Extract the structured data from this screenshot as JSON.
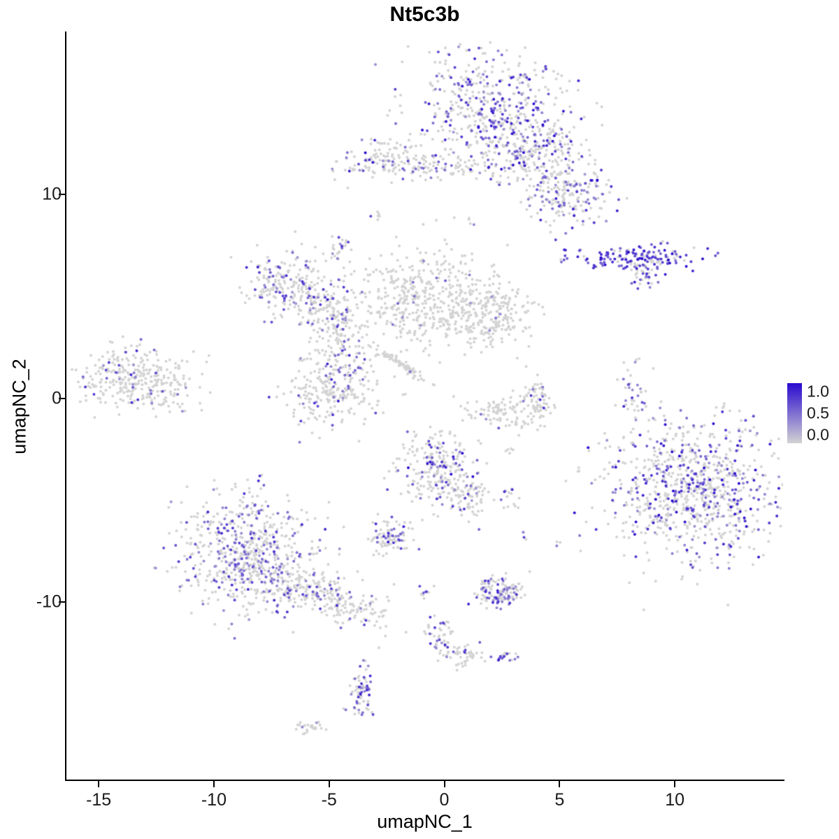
{
  "chart_data": {
    "type": "scatter",
    "title": "Nt5c3b",
    "xlabel": "umapNC_1",
    "ylabel": "umapNC_2",
    "xlim": [
      -16.4,
      14.7
    ],
    "ylim": [
      -18.7,
      18.0
    ],
    "x_ticks": [
      -15,
      -10,
      -5,
      0,
      5,
      10
    ],
    "y_ticks": [
      10,
      0,
      -10
    ],
    "grid": false,
    "legend_position": "right",
    "point_color_low": "#D3D3D3",
    "point_color_high": "#2A0ACF",
    "legend": {
      "tick_labels": [
        "1.0",
        "0.5",
        "0.0"
      ]
    },
    "clusters": [
      {
        "name": "top-main",
        "cx": 2.0,
        "cy": 14.3,
        "sx": 1.6,
        "sy": 1.4,
        "rot": 0,
        "n": 480,
        "frac": 0.35,
        "vmin": 0.3,
        "vmax": 1.0
      },
      {
        "name": "top-right-arm",
        "cx": 4.0,
        "cy": 11.8,
        "sx": 1.4,
        "sy": 0.9,
        "rot": -0.3,
        "n": 280,
        "frac": 0.3,
        "vmin": 0.3,
        "vmax": 1.0
      },
      {
        "name": "top-right-lobe",
        "cx": 5.4,
        "cy": 9.9,
        "sx": 0.9,
        "sy": 0.7,
        "rot": 0,
        "n": 150,
        "frac": 0.3,
        "vmin": 0.3,
        "vmax": 0.9
      },
      {
        "name": "top-left-small",
        "cx": -2.4,
        "cy": 11.7,
        "sx": 1.1,
        "sy": 0.55,
        "rot": 0,
        "n": 140,
        "frac": 0.22,
        "vmin": 0.3,
        "vmax": 1.0
      },
      {
        "name": "top-mid-strand",
        "cx": 0.1,
        "cy": 11.3,
        "sx": 0.8,
        "sy": 0.25,
        "rot": 0,
        "n": 50,
        "frac": 0.1,
        "vmin": 0.3,
        "vmax": 0.7
      },
      {
        "name": "tiny-upper-mid",
        "cx": -4.5,
        "cy": 7.4,
        "sx": 0.25,
        "sy": 0.35,
        "rot": 0,
        "n": 25,
        "frac": 0.3,
        "vmin": 0.3,
        "vmax": 0.8
      },
      {
        "name": "right-band-high",
        "cx": 8.4,
        "cy": 6.9,
        "sx": 1.5,
        "sy": 0.28,
        "rot": 0,
        "n": 150,
        "frac": 0.75,
        "vmin": 0.5,
        "vmax": 1.0
      },
      {
        "name": "right-band-tail",
        "cx": 8.8,
        "cy": 6.1,
        "sx": 0.35,
        "sy": 0.45,
        "rot": 0,
        "n": 40,
        "frac": 0.5,
        "vmin": 0.4,
        "vmax": 1.0
      },
      {
        "name": "mid-left-blob",
        "cx": -6.8,
        "cy": 5.7,
        "sx": 1.0,
        "sy": 0.75,
        "rot": 0,
        "n": 170,
        "frac": 0.25,
        "vmin": 0.3,
        "vmax": 0.9
      },
      {
        "name": "mid-left-arm1",
        "cx": -5.3,
        "cy": 4.5,
        "sx": 0.8,
        "sy": 0.8,
        "rot": 0,
        "n": 140,
        "frac": 0.2,
        "vmin": 0.3,
        "vmax": 0.9
      },
      {
        "name": "mid-left-arm2",
        "cx": -4.5,
        "cy": 2.8,
        "sx": 0.6,
        "sy": 0.9,
        "rot": 0,
        "n": 130,
        "frac": 0.22,
        "vmin": 0.3,
        "vmax": 0.9
      },
      {
        "name": "mid-left-lower",
        "cx": -4.8,
        "cy": 0.4,
        "sx": 1.1,
        "sy": 0.9,
        "rot": 0,
        "n": 240,
        "frac": 0.15,
        "vmin": 0.3,
        "vmax": 0.9
      },
      {
        "name": "center-blob",
        "cx": -0.7,
        "cy": 4.9,
        "sx": 1.5,
        "sy": 1.2,
        "rot": 0,
        "n": 430,
        "frac": 0.03,
        "vmin": 0.3,
        "vmax": 0.6
      },
      {
        "name": "center-right-blob",
        "cx": 1.9,
        "cy": 4.0,
        "sx": 1.1,
        "sy": 0.8,
        "rot": 0,
        "n": 220,
        "frac": 0.02,
        "vmin": 0.3,
        "vmax": 0.5
      },
      {
        "name": "diag-streak",
        "cx": -1.9,
        "cy": 1.7,
        "sx": 0.8,
        "sy": 0.1,
        "rot": -0.7,
        "n": 70,
        "frac": 0.02,
        "vmin": 0.3,
        "vmax": 0.5
      },
      {
        "name": "far-left",
        "cx": -13.3,
        "cy": 0.9,
        "sx": 1.3,
        "sy": 0.8,
        "rot": 0,
        "n": 320,
        "frac": 0.12,
        "vmin": 0.3,
        "vmax": 0.9
      },
      {
        "name": "arc-small-a",
        "cx": 2.6,
        "cy": -0.75,
        "sx": 0.8,
        "sy": 0.35,
        "rot": -0.2,
        "n": 90,
        "frac": 0.06,
        "vmin": 0.3,
        "vmax": 0.8
      },
      {
        "name": "arc-small-b",
        "cx": 4.0,
        "cy": -0.1,
        "sx": 0.35,
        "sy": 0.55,
        "rot": 0.2,
        "n": 70,
        "frac": 0.06,
        "vmin": 0.3,
        "vmax": 0.8
      },
      {
        "name": "right-strip",
        "cx": 8.3,
        "cy": 0.3,
        "sx": 0.25,
        "sy": 0.9,
        "rot": 0,
        "n": 40,
        "frac": 0.35,
        "vmin": 0.3,
        "vmax": 0.9
      },
      {
        "name": "big-right",
        "cx": 10.8,
        "cy": -4.4,
        "sx": 1.9,
        "sy": 1.7,
        "rot": 0,
        "n": 850,
        "frac": 0.35,
        "vmin": 0.3,
        "vmax": 1.0
      },
      {
        "name": "bottom-left-core",
        "cx": -8.4,
        "cy": -7.6,
        "sx": 1.5,
        "sy": 1.5,
        "rot": 0,
        "n": 620,
        "frac": 0.32,
        "vmin": 0.3,
        "vmax": 0.85
      },
      {
        "name": "bottom-left-tail",
        "cx": -5.3,
        "cy": -9.7,
        "sx": 1.7,
        "sy": 0.5,
        "rot": -0.39,
        "n": 260,
        "frac": 0.18,
        "vmin": 0.3,
        "vmax": 0.8
      },
      {
        "name": "center-bottom-blob",
        "cx": -0.3,
        "cy": -3.4,
        "sx": 0.95,
        "sy": 0.85,
        "rot": 0,
        "n": 230,
        "frac": 0.25,
        "vmin": 0.3,
        "vmax": 1.0
      },
      {
        "name": "cb-arm",
        "cx": 1.0,
        "cy": -4.9,
        "sx": 0.5,
        "sy": 0.5,
        "rot": 0,
        "n": 80,
        "frac": 0.15,
        "vmin": 0.3,
        "vmax": 0.8
      },
      {
        "name": "cb-side",
        "cx": 2.8,
        "cy": -4.9,
        "sx": 0.2,
        "sy": 0.3,
        "rot": 0,
        "n": 15,
        "frac": 0.4,
        "vmin": 0.3,
        "vmax": 0.8
      },
      {
        "name": "small-left-bottom",
        "cx": -2.4,
        "cy": -6.9,
        "sx": 0.5,
        "sy": 0.4,
        "rot": 0,
        "n": 90,
        "frac": 0.3,
        "vmin": 0.3,
        "vmax": 0.9
      },
      {
        "name": "dots-m09-m94",
        "cx": -0.9,
        "cy": -9.4,
        "sx": 0.2,
        "sy": 0.25,
        "rot": 0,
        "n": 10,
        "frac": 0.5,
        "vmin": 0.4,
        "vmax": 0.9
      },
      {
        "name": "blob-25-m95",
        "cx": 2.5,
        "cy": -9.5,
        "sx": 0.5,
        "sy": 0.4,
        "rot": 0,
        "n": 130,
        "frac": 0.4,
        "vmin": 0.3,
        "vmax": 0.9
      },
      {
        "name": "trail-0-m118",
        "cx": -0.1,
        "cy": -11.8,
        "sx": 0.3,
        "sy": 0.55,
        "rot": 0,
        "n": 50,
        "frac": 0.3,
        "vmin": 0.3,
        "vmax": 0.9
      },
      {
        "name": "trail-09-m126",
        "cx": 0.9,
        "cy": -12.6,
        "sx": 0.4,
        "sy": 0.3,
        "rot": 0,
        "n": 40,
        "frac": 0.25,
        "vmin": 0.3,
        "vmax": 0.8
      },
      {
        "name": "tiny-26-m127",
        "cx": 2.6,
        "cy": -12.7,
        "sx": 0.25,
        "sy": 0.2,
        "rot": 0,
        "n": 18,
        "frac": 0.5,
        "vmin": 0.4,
        "vmax": 0.9
      },
      {
        "name": "vert-m36-m145",
        "cx": -3.6,
        "cy": -14.5,
        "sx": 0.25,
        "sy": 0.6,
        "rot": 0,
        "n": 70,
        "frac": 0.45,
        "vmin": 0.3,
        "vmax": 0.9
      },
      {
        "name": "dash-m59-m161",
        "cx": -5.9,
        "cy": -16.1,
        "sx": 0.35,
        "sy": 0.12,
        "rot": 0,
        "n": 25,
        "frac": 0.05,
        "vmin": 0.3,
        "vmax": 0.5
      },
      {
        "name": "single-35-m69",
        "cx": 3.5,
        "cy": -6.9,
        "sx": 0.12,
        "sy": 0.12,
        "rot": 0,
        "n": 3,
        "frac": 0.7,
        "vmin": 0.4,
        "vmax": 0.8
      },
      {
        "name": "single-50-m72",
        "cx": 5.0,
        "cy": -7.2,
        "sx": 0.12,
        "sy": 0.12,
        "rot": 0,
        "n": 3,
        "frac": 0.1,
        "vmin": 0.3,
        "vmax": 0.5
      },
      {
        "name": "single-29-m26",
        "cx": 2.9,
        "cy": -2.6,
        "sx": 0.15,
        "sy": 0.12,
        "rot": 0,
        "n": 4,
        "frac": 0.1,
        "vmin": 0.3,
        "vmax": 0.5
      },
      {
        "name": "single-m29-89",
        "cx": -2.9,
        "cy": 8.9,
        "sx": 0.18,
        "sy": 0.15,
        "rot": 0,
        "n": 6,
        "frac": 0.2,
        "vmin": 0.3,
        "vmax": 0.7
      },
      {
        "name": "single-11-87",
        "cx": 1.1,
        "cy": 8.7,
        "sx": 0.12,
        "sy": 0.12,
        "rot": 0,
        "n": 3,
        "frac": 0.1,
        "vmin": 0.3,
        "vmax": 0.5
      }
    ]
  }
}
